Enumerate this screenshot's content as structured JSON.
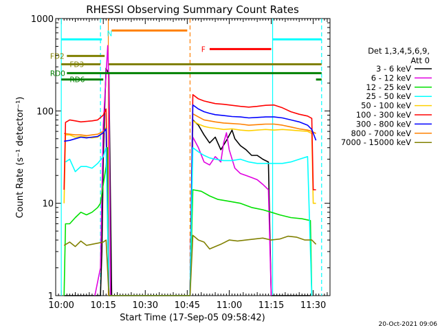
{
  "chart_data": {
    "type": "line",
    "title": "RHESSI Observing Summary Count Rates",
    "xlabel": "Start Time (17-Sep-05 09:58:42)",
    "ylabel": "Count Rate (s⁻¹ detector⁻¹)",
    "yscale": "log",
    "ylim": [
      1,
      1000
    ],
    "xlim_minutes": [
      -2,
      96
    ],
    "x_ticks": [
      {
        "label": "10:00",
        "t": 0
      },
      {
        "label": "10:15",
        "t": 15
      },
      {
        "label": "10:30",
        "t": 30
      },
      {
        "label": "10:45",
        "t": 45
      },
      {
        "label": "11:00",
        "t": 60
      },
      {
        "label": "11:15",
        "t": 75
      },
      {
        "label": "11:30",
        "t": 90
      }
    ],
    "y_ticks": [
      {
        "label": "1",
        "v": 1
      },
      {
        "label": "10",
        "v": 10
      },
      {
        "label": "100",
        "v": 100
      },
      {
        "label": "1000",
        "v": 1000
      }
    ],
    "legend": {
      "header1": "Det 1,3,4,5,6,9,",
      "header2": "Att 0",
      "position": "right"
    },
    "series": [
      {
        "name": "3 - 6 keV",
        "color": "#000000",
        "points": [
          [
            1,
            1
          ],
          [
            14,
            1
          ],
          [
            14.5,
            3
          ],
          [
            15,
            30
          ],
          [
            15.5,
            110
          ],
          [
            16,
            290
          ],
          [
            17,
            250
          ],
          [
            18,
            1
          ],
          [
            46,
            1
          ],
          [
            47,
            80
          ],
          [
            49,
            70
          ],
          [
            51,
            55
          ],
          [
            53,
            45
          ],
          [
            55,
            52
          ],
          [
            57,
            38
          ],
          [
            59,
            48
          ],
          [
            61,
            62
          ],
          [
            62,
            50
          ],
          [
            64,
            42
          ],
          [
            66,
            38
          ],
          [
            68,
            33
          ],
          [
            70,
            33
          ],
          [
            72,
            30
          ],
          [
            74,
            28
          ],
          [
            75,
            1
          ],
          [
            89,
            1
          ]
        ]
      },
      {
        "name": "6 - 12 keV",
        "color": "#e000e0",
        "points": [
          [
            12,
            1
          ],
          [
            14,
            2
          ],
          [
            15,
            70
          ],
          [
            16,
            250
          ],
          [
            16.6,
            510
          ],
          [
            17,
            200
          ],
          [
            17.6,
            1
          ],
          [
            46,
            1
          ],
          [
            47,
            52
          ],
          [
            49,
            40
          ],
          [
            51,
            28
          ],
          [
            53,
            26
          ],
          [
            55,
            32
          ],
          [
            57,
            28
          ],
          [
            58,
            45
          ],
          [
            59,
            58
          ],
          [
            60,
            38
          ],
          [
            62,
            24
          ],
          [
            64,
            21
          ],
          [
            66,
            20
          ],
          [
            68,
            19
          ],
          [
            70,
            18
          ],
          [
            72,
            16
          ],
          [
            74,
            14
          ],
          [
            75,
            1
          ]
        ]
      },
      {
        "name": "12 - 25 keV",
        "color": "#00e000",
        "points": [
          [
            1,
            1
          ],
          [
            1.5,
            6
          ],
          [
            3,
            6
          ],
          [
            5,
            7
          ],
          [
            7,
            8
          ],
          [
            9,
            7.5
          ],
          [
            11,
            8
          ],
          [
            13,
            9
          ],
          [
            14,
            10
          ],
          [
            15,
            16
          ],
          [
            16,
            25
          ],
          [
            16.5,
            40
          ],
          [
            17,
            1
          ],
          [
            46,
            1
          ],
          [
            47,
            14
          ],
          [
            50,
            13.5
          ],
          [
            53,
            12
          ],
          [
            56,
            11
          ],
          [
            60,
            10.5
          ],
          [
            64,
            10
          ],
          [
            68,
            9
          ],
          [
            72,
            8.5
          ],
          [
            75,
            8
          ],
          [
            78,
            7.5
          ],
          [
            82,
            7
          ],
          [
            86,
            6.8
          ],
          [
            89,
            6.5
          ],
          [
            89.5,
            1
          ]
        ]
      },
      {
        "name": "25 - 50 keV",
        "color": "#00ffff",
        "points": [
          [
            1.5,
            28
          ],
          [
            3,
            30
          ],
          [
            5,
            22
          ],
          [
            7,
            25
          ],
          [
            9,
            25
          ],
          [
            11,
            24
          ],
          [
            13,
            27
          ],
          [
            15,
            32
          ],
          [
            16,
            40
          ],
          [
            17,
            1
          ],
          [
            46,
            1
          ],
          [
            47,
            40
          ],
          [
            49,
            36
          ],
          [
            51,
            33
          ],
          [
            53,
            31
          ],
          [
            55,
            30
          ],
          [
            58,
            29
          ],
          [
            61,
            29
          ],
          [
            64,
            30
          ],
          [
            67,
            28
          ],
          [
            70,
            27
          ],
          [
            73,
            27
          ],
          [
            76,
            27
          ],
          [
            79,
            27
          ],
          [
            82,
            28
          ],
          [
            85,
            30
          ],
          [
            88,
            32
          ],
          [
            89.5,
            1
          ]
        ]
      },
      {
        "name": "50 - 100 keV",
        "color": "#ffd000",
        "points": [
          [
            1,
            10
          ],
          [
            1.5,
            55
          ],
          [
            3,
            55
          ],
          [
            5,
            52
          ],
          [
            7,
            53
          ],
          [
            9,
            52
          ],
          [
            11,
            51
          ],
          [
            13,
            52
          ],
          [
            15,
            58
          ],
          [
            16,
            66
          ],
          [
            17,
            1
          ],
          [
            46,
            1
          ],
          [
            47,
            78
          ],
          [
            49,
            72
          ],
          [
            51,
            68
          ],
          [
            53,
            66
          ],
          [
            55,
            65
          ],
          [
            58,
            63
          ],
          [
            61,
            64
          ],
          [
            64,
            62
          ],
          [
            67,
            61
          ],
          [
            70,
            62
          ],
          [
            73,
            63
          ],
          [
            76,
            62
          ],
          [
            79,
            63
          ],
          [
            82,
            62
          ],
          [
            85,
            61
          ],
          [
            88,
            60
          ],
          [
            89.5,
            57
          ],
          [
            90,
            10
          ],
          [
            91,
            10
          ]
        ]
      },
      {
        "name": "100 - 300 keV",
        "color": "#ff0000",
        "points": [
          [
            1,
            14
          ],
          [
            1.5,
            75
          ],
          [
            3,
            80
          ],
          [
            5,
            78
          ],
          [
            7,
            76
          ],
          [
            9,
            77
          ],
          [
            11,
            78
          ],
          [
            13,
            80
          ],
          [
            15,
            90
          ],
          [
            16,
            105
          ],
          [
            17,
            1
          ],
          [
            46,
            1
          ],
          [
            47,
            150
          ],
          [
            49,
            135
          ],
          [
            51,
            128
          ],
          [
            53,
            124
          ],
          [
            55,
            120
          ],
          [
            58,
            118
          ],
          [
            61,
            115
          ],
          [
            64,
            112
          ],
          [
            67,
            110
          ],
          [
            70,
            112
          ],
          [
            73,
            115
          ],
          [
            76,
            116
          ],
          [
            79,
            108
          ],
          [
            82,
            98
          ],
          [
            85,
            92
          ],
          [
            88,
            88
          ],
          [
            89.5,
            83
          ],
          [
            90,
            14
          ],
          [
            91,
            14
          ]
        ]
      },
      {
        "name": "300 - 800 keV",
        "color": "#0000ff",
        "points": [
          [
            1,
            47
          ],
          [
            3,
            48
          ],
          [
            5,
            50
          ],
          [
            7,
            52
          ],
          [
            9,
            51
          ],
          [
            11,
            52
          ],
          [
            13,
            53
          ],
          [
            15,
            58
          ],
          [
            16,
            64
          ],
          [
            17,
            1
          ],
          [
            46,
            1
          ],
          [
            47,
            116
          ],
          [
            49,
            105
          ],
          [
            51,
            98
          ],
          [
            53,
            94
          ],
          [
            55,
            91
          ],
          [
            58,
            89
          ],
          [
            61,
            87
          ],
          [
            64,
            86
          ],
          [
            67,
            84
          ],
          [
            70,
            85
          ],
          [
            73,
            86
          ],
          [
            76,
            86
          ],
          [
            79,
            84
          ],
          [
            82,
            80
          ],
          [
            85,
            76
          ],
          [
            88,
            70
          ],
          [
            89.5,
            63
          ],
          [
            91,
            48
          ]
        ]
      },
      {
        "name": "800 - 7000 keV",
        "color": "#ff8000",
        "points": [
          [
            1,
            57
          ],
          [
            3,
            56
          ],
          [
            5,
            55
          ],
          [
            7,
            55
          ],
          [
            9,
            54
          ],
          [
            11,
            55
          ],
          [
            13,
            56
          ],
          [
            15,
            60
          ],
          [
            16,
            64
          ],
          [
            17,
            1
          ],
          [
            46,
            1
          ],
          [
            47,
            93
          ],
          [
            49,
            86
          ],
          [
            51,
            80
          ],
          [
            53,
            78
          ],
          [
            55,
            76
          ],
          [
            58,
            74
          ],
          [
            61,
            73
          ],
          [
            64,
            72
          ],
          [
            67,
            70
          ],
          [
            70,
            71
          ],
          [
            73,
            72
          ],
          [
            76,
            72
          ],
          [
            79,
            70
          ],
          [
            82,
            67
          ],
          [
            85,
            64
          ],
          [
            88,
            62
          ],
          [
            89.5,
            60
          ],
          [
            91,
            57
          ]
        ]
      },
      {
        "name": "7000 - 15000 keV",
        "color": "#808000",
        "points": [
          [
            1,
            3.5
          ],
          [
            3,
            3.8
          ],
          [
            5,
            3.4
          ],
          [
            7,
            3.9
          ],
          [
            9,
            3.5
          ],
          [
            11,
            3.6
          ],
          [
            13,
            3.7
          ],
          [
            15,
            3.8
          ],
          [
            16,
            4
          ],
          [
            17,
            1
          ],
          [
            46,
            1
          ],
          [
            47,
            4.5
          ],
          [
            49,
            4
          ],
          [
            51,
            3.8
          ],
          [
            53,
            3.2
          ],
          [
            55,
            3.4
          ],
          [
            57,
            3.6
          ],
          [
            60,
            4
          ],
          [
            63,
            3.9
          ],
          [
            66,
            4
          ],
          [
            69,
            4.1
          ],
          [
            72,
            4.2
          ],
          [
            75,
            4
          ],
          [
            78,
            4.1
          ],
          [
            81,
            4.4
          ],
          [
            84,
            4.3
          ],
          [
            87,
            4
          ],
          [
            89.5,
            4
          ],
          [
            91,
            3.6
          ]
        ]
      }
    ],
    "flag_bars": [
      {
        "label": "",
        "color": "#00ffff",
        "y_rel": 0.075,
        "segments": [
          [
            0,
            14.5
          ],
          [
            75.5,
            93
          ]
        ]
      },
      {
        "label": "N",
        "color": "#00ffff",
        "label_t": 16.3,
        "y_rel": 0.053,
        "segments": []
      },
      {
        "label": "",
        "color": "#ff8000",
        "y_rel": 0.043,
        "segments": [
          [
            18,
            45
          ]
        ]
      },
      {
        "label": "F",
        "color": "#ff0000",
        "label_t": 50,
        "y_rel": 0.11,
        "segments": [
          [
            53,
            75
          ]
        ]
      },
      {
        "label": "FD2",
        "color": "#808000",
        "label_t": -4,
        "y_rel": 0.135,
        "segments": [
          [
            2,
            15.5
          ]
        ]
      },
      {
        "label": "FD3",
        "color": "#808000",
        "label_t": 3,
        "y_rel": 0.165,
        "segments": [
          [
            0,
            14
          ],
          [
            17,
            93
          ]
        ]
      },
      {
        "label": "RD0",
        "color": "#008000",
        "label_t": -4,
        "y_rel": 0.197,
        "segments": [
          [
            2,
            93
          ]
        ]
      },
      {
        "label": "RD6",
        "color": "#008000",
        "label_t": 3,
        "y_rel": 0.22,
        "segments": [
          [
            0,
            15
          ],
          [
            91,
            93
          ]
        ]
      }
    ],
    "vertical_markers": [
      {
        "t": 0,
        "color": "#00ffff",
        "style": "solid"
      },
      {
        "t": 14,
        "color": "#00ffff",
        "style": "dashed"
      },
      {
        "t": 16.8,
        "color": "#ff8000",
        "style": "solid"
      },
      {
        "t": 46,
        "color": "#ff8000",
        "style": "dashed"
      },
      {
        "t": 75.5,
        "color": "#00ffff",
        "style": "solid"
      },
      {
        "t": 93,
        "color": "#00ffff",
        "style": "dashed"
      }
    ]
  },
  "footer": {
    "timestamp": "20-Oct-2021 09:06"
  }
}
